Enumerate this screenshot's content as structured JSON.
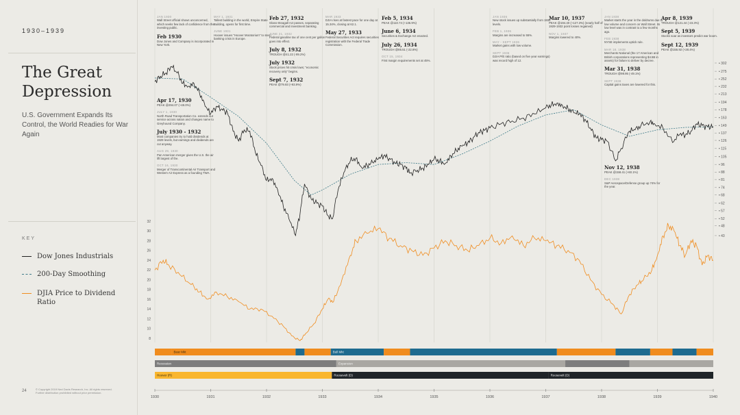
{
  "sidebar": {
    "years": "1930–1939",
    "title": "The Great Depression",
    "subtitle": "U.S. Government Expands Its Control, the World Readies for War Again",
    "key_label": "KEY",
    "key": [
      {
        "label": "Dow Jones Industrials",
        "color": "#1f1f1f",
        "style": "solid"
      },
      {
        "label": "200-Day Smoothing",
        "color": "#3d7a88",
        "style": "dashed"
      },
      {
        "label": "DJIA Price to Dividend Ratio",
        "color": "#f08c1e",
        "style": "solid"
      }
    ],
    "page_number": "24",
    "copyright": "© Copyright 2019 Ned Davis Research, Inc. All rights reserved. Further distribution prohibited without prior permission."
  },
  "annotations": [
    {
      "col": 0,
      "entries": [
        {
          "date": "JAN 1930",
          "small": true,
          "text": "Wall Street official shows unconcerned, which seeks few lack of confidence from the investing public."
        },
        {
          "date": "Feb 1930",
          "text": "Dow Jones and Company is incorporated in New York."
        }
      ]
    },
    {
      "col": 1,
      "entries": [
        {
          "date": "MAY 1, 1931",
          "small": true,
          "text": "Tallest building in the world, Empire State Building, opens for first time."
        },
        {
          "date": "JUNE 1931",
          "small": true,
          "text": "Hoover issues \"Hoover Moratorium\" to stem banking crisis in Europe."
        }
      ]
    },
    {
      "col": 2,
      "entries": [
        {
          "date": "Feb 27, 1932",
          "text": "Glass-Steagall Act passes, separating commercial and investment banking."
        },
        {
          "date": "JUNE 21, 1932",
          "small": true,
          "text": "Federal gasoline tax of one cent per gallon goes into effect."
        },
        {
          "date": "July 8, 1932",
          "text": "TROUGH @41.22 (-89.2%)"
        },
        {
          "date": "July 1932",
          "text": "Stock prices hit crisis lows; \"economic recovery only\" begins."
        },
        {
          "date": "Sept 7, 1932",
          "text": "PEAK @79.93 (+93.9%)"
        }
      ]
    },
    {
      "col": 3,
      "entries": [
        {
          "date": "MAR 1933",
          "small": true,
          "text": "DJIA rises at fastest pace for one day at 15.34%, closing at 62.1."
        },
        {
          "date": "May 27, 1933",
          "text": "Federal Securities Act requires securities registration with the Federal Trade Commission."
        }
      ]
    },
    {
      "col": 4,
      "entries": [
        {
          "date": "Feb 5, 1934",
          "text": "PEAK @110.74 (+136.9%)"
        },
        {
          "date": "June 6, 1934",
          "text": "Securities & Exchange Act enacted."
        },
        {
          "date": "July 26, 1934",
          "text": "TROUGH @85.51 (-22.8%)"
        },
        {
          "date": "OCT 15, 1934",
          "small": true,
          "text": "First margin requirements set at 45%."
        }
      ]
    },
    {
      "col": 5,
      "entries": [
        {
          "date": "JAN 1936",
          "small": true,
          "text": "New stock issues up substantially from 1934 levels."
        },
        {
          "date": "FEB 1, 1936",
          "small": true,
          "text": "Margins are increased to 55%."
        },
        {
          "date": "MAY - SEPT 1936",
          "small": true,
          "text": "Market gains with low volume."
        },
        {
          "date": "SEPT 1936",
          "small": true,
          "text": "DJIA P/E ratio (based on five year earnings) was record high of 12."
        }
      ]
    },
    {
      "col": 6,
      "entries": [
        {
          "date": "Mar 10, 1937",
          "text": "PEAK @194.40 (+127.3%) (nearly half of 1929-1932 point losses regained)"
        },
        {
          "date": "NOV 1, 1937",
          "small": true,
          "text": "Margins lowered to 40%."
        }
      ]
    },
    {
      "col": 7,
      "entries": [
        {
          "date": "JAN 1938",
          "small": true,
          "text": "Market starts the year in the doldrums due to low volume and concern on Wall Street. Its low level was in contrast to a few months ago."
        },
        {
          "date": "FEB 1938",
          "small": true,
          "text": "NYSE implements uptick rule."
        },
        {
          "date": "MAR 18, 1938",
          "small": true,
          "text": "Merchants National (the 17 American and British corporations representing $4.5B in assets) for failure to deliver by decree."
        },
        {
          "date": "Mar 31, 1938",
          "text": "TROUGH @98.95 (-49.1%)"
        },
        {
          "date": "SEPT 1938",
          "small": true,
          "text": "Capital gains taxes are lowered for this."
        }
      ]
    },
    {
      "col": 8,
      "entries": [
        {
          "date": "Apr 8, 1939",
          "text": "TROUGH @121.44 (-23.3%)"
        },
        {
          "date": "Sept 5, 1939",
          "text": "Stocks soar as investors predict war boom."
        },
        {
          "date": "Sept 12, 1939",
          "text": "PEAK @155.92 (+28.4%)"
        }
      ]
    },
    {
      "col": 9,
      "entries": [
        {
          "date": "Apr 17, 1930",
          "text": "PEAK @294.07 (+48.0%)"
        },
        {
          "date": "JULY 1, 1930",
          "small": true,
          "text": "North Road Transportation Co. extends out service across nation and changes name to Greyhound Company."
        },
        {
          "date": "July 1930 - 1932",
          "text": "Most companies try to hold dividends at 1929 levels, but earnings and dividends are cut anyway."
        },
        {
          "date": "AUG 29, 1930",
          "small": true,
          "text": "Pan American merger gives the U.S. the air lift largest of the."
        },
        {
          "date": "OCT 16, 1930",
          "small": true,
          "text": "Merger of Transcontinental Air Transport and Western Air Express as a founding TWA."
        }
      ]
    },
    {
      "col": 10,
      "entries": [
        {
          "date": "Nov 12, 1938",
          "text": "PEAK @158.41 (+60.1%)"
        },
        {
          "date": "DEC 1938",
          "small": true,
          "text": "S&P Aerospace/Defense group up 74% for the year."
        }
      ]
    }
  ],
  "bands": [
    {
      "row": 0,
      "segments": [
        {
          "start": 1930.0,
          "end": 1930.3,
          "type": "bear",
          "label": ""
        },
        {
          "start": 1930.3,
          "end": 1932.52,
          "type": "bear",
          "label": "Bear Mkt"
        },
        {
          "start": 1932.52,
          "end": 1932.68,
          "type": "bull",
          "label": ""
        },
        {
          "start": 1932.68,
          "end": 1933.15,
          "type": "bear",
          "label": ""
        },
        {
          "start": 1933.15,
          "end": 1934.1,
          "type": "bull",
          "label": "Bull Mkt"
        },
        {
          "start": 1934.1,
          "end": 1934.57,
          "type": "bear",
          "label": ""
        },
        {
          "start": 1934.57,
          "end": 1937.2,
          "type": "bull",
          "label": ""
        },
        {
          "start": 1937.2,
          "end": 1938.25,
          "type": "bear",
          "label": ""
        },
        {
          "start": 1938.25,
          "end": 1938.87,
          "type": "bull",
          "label": ""
        },
        {
          "start": 1938.87,
          "end": 1939.27,
          "type": "bear",
          "label": ""
        },
        {
          "start": 1939.27,
          "end": 1939.7,
          "type": "bull",
          "label": ""
        },
        {
          "start": 1939.7,
          "end": 1940.0,
          "type": "bear",
          "label": ""
        }
      ]
    },
    {
      "row": 1,
      "segments": [
        {
          "start": 1930.0,
          "end": 1933.25,
          "type": "recession",
          "label": "Recession"
        },
        {
          "start": 1933.25,
          "end": 1937.35,
          "type": "expansion",
          "label": "Expansion"
        },
        {
          "start": 1937.35,
          "end": 1938.5,
          "type": "recession",
          "label": ""
        },
        {
          "start": 1938.5,
          "end": 1940.0,
          "type": "expansion",
          "label": ""
        }
      ]
    },
    {
      "row": 2,
      "segments": [
        {
          "start": 1930.0,
          "end": 1933.17,
          "type": "hoover",
          "label": "Hoover (R)"
        },
        {
          "start": 1933.17,
          "end": 1937.05,
          "type": "roosevelt",
          "label": "Roosevelt (D)"
        },
        {
          "start": 1937.05,
          "end": 1940.0,
          "type": "roosevelt",
          "label": "Roosevelt (D)"
        }
      ]
    }
  ],
  "chart_data": {
    "type": "line",
    "title": "",
    "x_range": [
      1930,
      1940
    ],
    "x_ticks": [
      "1930",
      "1931",
      "1932",
      "1933",
      "1934",
      "1935",
      "1936",
      "1937",
      "1938",
      "1939",
      "1940"
    ],
    "y_scale": "log",
    "djia_ticks": [
      302,
      275,
      252,
      232,
      213,
      194,
      178,
      163,
      149,
      137,
      126,
      115,
      105,
      96,
      88,
      81,
      74,
      68,
      62,
      57,
      52,
      48,
      43
    ],
    "ratio_ticks": [
      32,
      30,
      28,
      26,
      24,
      22,
      20,
      18,
      16,
      14,
      12,
      10,
      8
    ],
    "colors": {
      "djia": "#1f1f1f",
      "smooth": "#3d7a88",
      "ratio": "#f08c1e",
      "bear": "#f08c1e",
      "bull": "#1e6b8f",
      "recession": "#7d7d7d",
      "expansion": "#a9a7a2",
      "hoover": "#f9b62f",
      "roosevelt": "#1f2428"
    },
    "series": [
      {
        "name": "Dow Jones Industrials",
        "x": [
          1930.0,
          1930.1,
          1930.2,
          1930.3,
          1930.4,
          1930.5,
          1930.6,
          1930.7,
          1930.8,
          1930.9,
          1931.0,
          1931.1,
          1931.2,
          1931.3,
          1931.4,
          1931.5,
          1931.6,
          1931.7,
          1931.8,
          1931.9,
          1932.0,
          1932.1,
          1932.2,
          1932.3,
          1932.4,
          1932.52,
          1932.6,
          1932.68,
          1932.8,
          1932.9,
          1933.0,
          1933.1,
          1933.18,
          1933.3,
          1933.4,
          1933.5,
          1933.6,
          1933.7,
          1933.8,
          1933.9,
          1934.0,
          1934.1,
          1934.2,
          1934.3,
          1934.4,
          1934.5,
          1934.57,
          1934.7,
          1934.8,
          1934.9,
          1935.0,
          1935.1,
          1935.2,
          1935.3,
          1935.4,
          1935.5,
          1935.6,
          1935.7,
          1935.8,
          1935.9,
          1936.0,
          1936.2,
          1936.4,
          1936.6,
          1936.8,
          1937.0,
          1937.1,
          1937.2,
          1937.3,
          1937.4,
          1937.5,
          1937.6,
          1937.7,
          1937.8,
          1937.9,
          1938.0,
          1938.1,
          1938.25,
          1938.35,
          1938.5,
          1938.6,
          1938.7,
          1938.87,
          1938.95,
          1939.1,
          1939.27,
          1939.4,
          1939.5,
          1939.6,
          1939.7,
          1939.8,
          1939.9,
          1940.0
        ],
        "values": [
          245,
          260,
          270,
          290,
          270,
          240,
          232,
          240,
          215,
          185,
          170,
          185,
          180,
          172,
          140,
          125,
          142,
          140,
          110,
          95,
          80,
          82,
          72,
          60,
          52,
          43,
          55,
          77,
          65,
          62,
          60,
          54,
          52,
          75,
          89,
          100,
          103,
          93,
          95,
          98,
          102,
          106,
          103,
          98,
          96,
          92,
          87,
          90,
          92,
          96,
          102,
          100,
          97,
          106,
          112,
          118,
          122,
          130,
          138,
          141,
          145,
          152,
          157,
          162,
          170,
          182,
          188,
          192,
          187,
          180,
          172,
          170,
          160,
          145,
          130,
          127,
          125,
          100,
          115,
          140,
          142,
          148,
          156,
          152,
          145,
          123,
          135,
          134,
          140,
          152,
          149,
          147,
          147
        ]
      },
      {
        "name": "200-Day Smoothing",
        "x": [
          1930.0,
          1930.5,
          1931.0,
          1931.5,
          1932.0,
          1932.5,
          1932.8,
          1933.0,
          1933.5,
          1934.0,
          1934.5,
          1935.0,
          1935.5,
          1936.0,
          1936.5,
          1937.0,
          1937.5,
          1938.0,
          1938.5,
          1939.0,
          1939.5,
          1940.0
        ],
        "values": [
          255,
          252,
          205,
          165,
          122,
          80,
          68,
          72,
          86,
          96,
          98,
          96,
          108,
          125,
          148,
          168,
          178,
          150,
          132,
          142,
          146,
          147
        ]
      },
      {
        "name": "DJIA Price to Dividend Ratio",
        "x": [
          1930.0,
          1930.15,
          1930.25,
          1930.45,
          1930.65,
          1930.8,
          1930.95,
          1931.1,
          1931.3,
          1931.5,
          1931.7,
          1931.9,
          1932.1,
          1932.3,
          1932.45,
          1932.6,
          1932.7,
          1932.85,
          1933.0,
          1933.1,
          1933.2,
          1933.35,
          1933.5,
          1933.6,
          1933.8,
          1934.0,
          1934.2,
          1934.4,
          1934.6,
          1934.8,
          1935.0,
          1935.2,
          1935.4,
          1935.6,
          1935.8,
          1936.0,
          1936.2,
          1936.4,
          1936.6,
          1936.8,
          1937.0,
          1937.2,
          1937.4,
          1937.6,
          1937.8,
          1938.0,
          1938.2,
          1938.35,
          1938.5,
          1938.65,
          1938.75,
          1938.9,
          1939.0,
          1939.1,
          1939.2,
          1939.3,
          1939.4,
          1939.5,
          1939.6,
          1939.7,
          1939.8,
          1939.9,
          1940.0
        ],
        "values": [
          22,
          24,
          23,
          21,
          19,
          17.5,
          16,
          17.5,
          16.5,
          15.5,
          14,
          14,
          12.5,
          10.5,
          8.5,
          7.5,
          9,
          11,
          14,
          16,
          15.5,
          20,
          25,
          28,
          29.5,
          30.5,
          28.5,
          27,
          26,
          25,
          26.5,
          28,
          27,
          26,
          27,
          28.5,
          27.5,
          29,
          27,
          28.5,
          28,
          27,
          26,
          24,
          20,
          17,
          15,
          13,
          17,
          19,
          20,
          22,
          25,
          29,
          31,
          30,
          27,
          25,
          28,
          27,
          23,
          25,
          24
        ]
      }
    ]
  }
}
